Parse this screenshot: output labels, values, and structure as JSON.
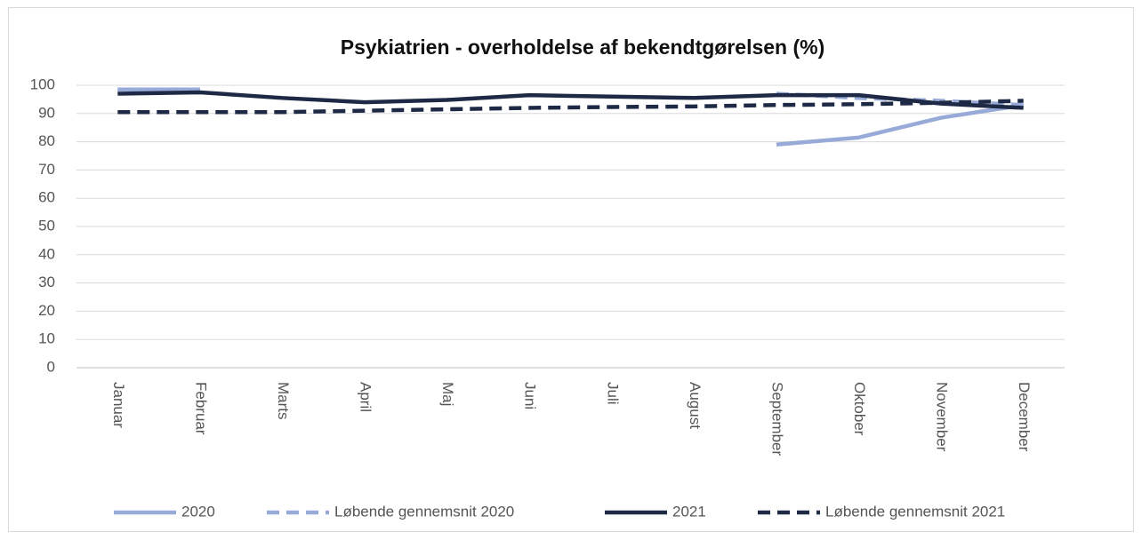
{
  "chart_data": {
    "type": "line",
    "title": "Psykiatrien - overholdelse af bekendtgørelsen (%)",
    "categories": [
      "Januar",
      "Februar",
      "Marts",
      "April",
      "Maj",
      "Juni",
      "Juli",
      "August",
      "September",
      "Oktober",
      "November",
      "December"
    ],
    "series": [
      {
        "name": "2020",
        "color": "#97aad8",
        "dash": false,
        "values": [
          98.5,
          98.5,
          null,
          null,
          null,
          null,
          null,
          null,
          79,
          81.5,
          88.5,
          93
        ]
      },
      {
        "name": "Løbende gennemsnit 2020",
        "color": "#97aad8",
        "dash": true,
        "values": [
          98.5,
          98.5,
          null,
          null,
          null,
          null,
          null,
          null,
          97,
          95.5,
          94.5,
          93
        ]
      },
      {
        "name": "2021",
        "color": "#1e2a45",
        "dash": false,
        "values": [
          97,
          97.5,
          95.5,
          94,
          94.8,
          96.5,
          96,
          95.5,
          96.5,
          96.5,
          93.5,
          92
        ]
      },
      {
        "name": "Løbende gennemsnit 2021",
        "color": "#1e2a45",
        "dash": true,
        "values": [
          90.5,
          90.5,
          90.5,
          91,
          91.5,
          92,
          92.3,
          92.5,
          93,
          93.3,
          93.8,
          94.5
        ]
      }
    ],
    "ylim": [
      0,
      100
    ],
    "yticks": [
      0,
      10,
      20,
      30,
      40,
      50,
      60,
      70,
      80,
      90,
      100
    ],
    "grid": true,
    "legend": "bottom"
  }
}
